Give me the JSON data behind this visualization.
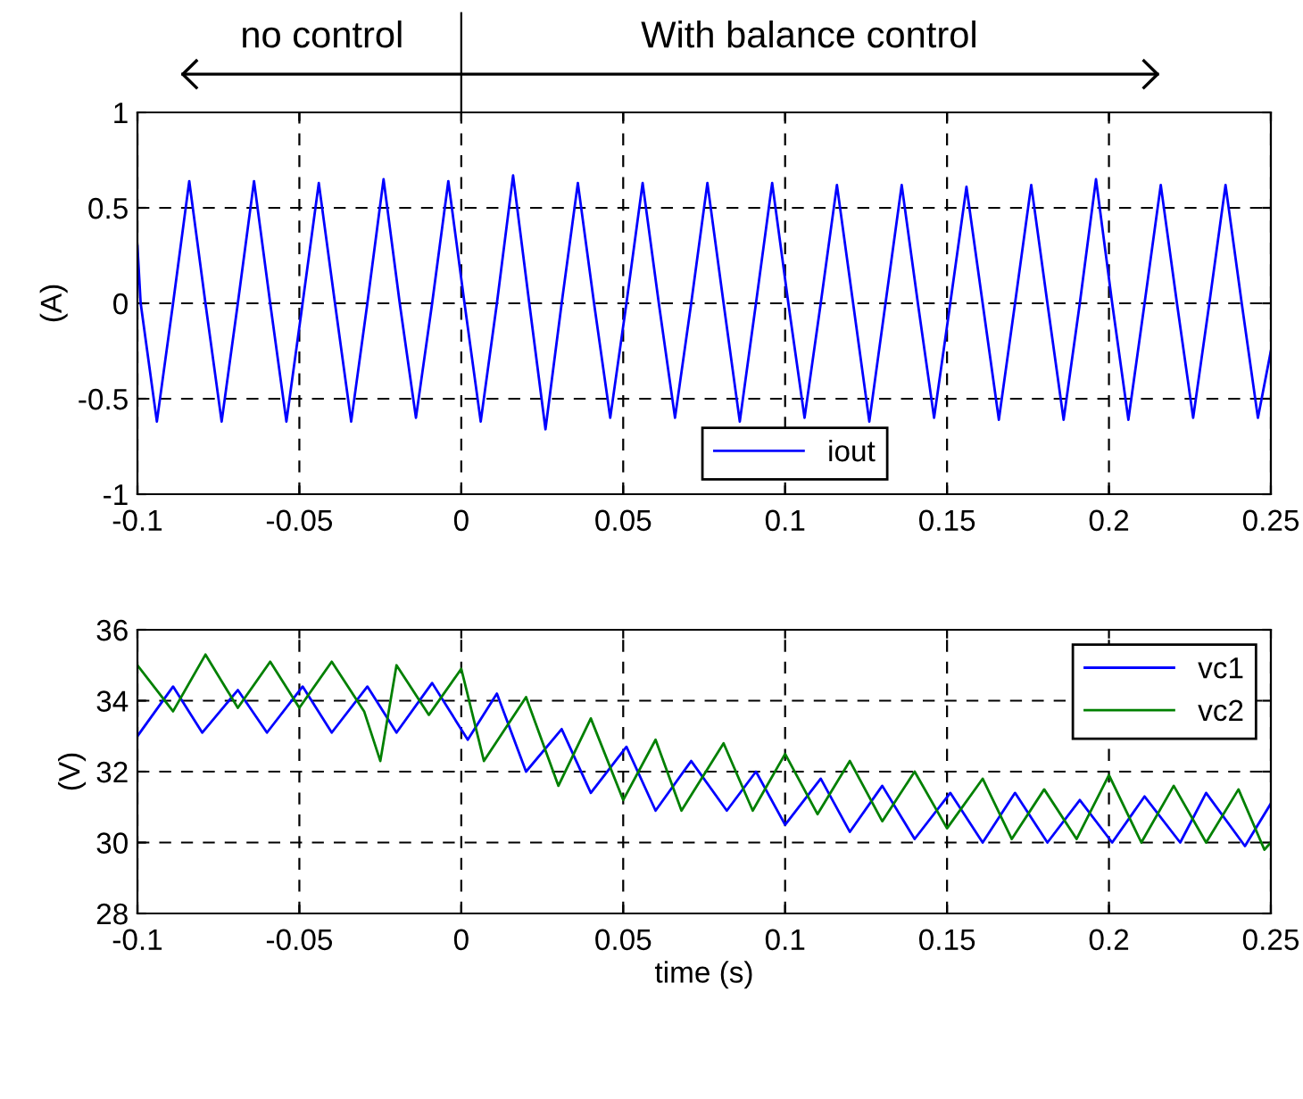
{
  "chart_data": [
    {
      "type": "line",
      "ylabel": "(A)",
      "annotations": [
        "no control",
        "With balance control"
      ],
      "xlim": [
        -0.1,
        0.25
      ],
      "xticks": [
        -0.1,
        -0.05,
        0,
        0.05,
        0.1,
        0.15,
        0.2,
        0.25
      ],
      "ylim": [
        -1,
        1
      ],
      "yticks": [
        -1,
        -0.5,
        0,
        0.5,
        1
      ],
      "grid": true,
      "legend": "bottom",
      "series": [
        {
          "name": "iout",
          "color": "#0000ff",
          "x": [
            -0.1,
            -0.099,
            -0.094,
            -0.089,
            -0.084,
            -0.079,
            -0.074,
            -0.069,
            -0.064,
            -0.059,
            -0.054,
            -0.049,
            -0.044,
            -0.039,
            -0.034,
            -0.029,
            -0.024,
            -0.019,
            -0.014,
            -0.009,
            -0.004,
            0.001,
            0.006,
            0.011,
            0.016,
            0.021,
            0.026,
            0.031,
            0.036,
            0.041,
            0.046,
            0.051,
            0.056,
            0.061,
            0.066,
            0.071,
            0.076,
            0.081,
            0.086,
            0.091,
            0.096,
            0.101,
            0.106,
            0.111,
            0.116,
            0.121,
            0.126,
            0.131,
            0.136,
            0.141,
            0.146,
            0.151,
            0.156,
            0.161,
            0.166,
            0.171,
            0.176,
            0.181,
            0.186,
            0.191,
            0.196,
            0.201,
            0.206,
            0.211,
            0.216,
            0.221,
            0.226,
            0.231,
            0.236,
            0.241,
            0.246,
            0.25
          ],
          "values": [
            0.3,
            0,
            -0.62,
            0,
            0.64,
            0,
            -0.62,
            0,
            0.64,
            0,
            -0.62,
            0,
            0.63,
            0,
            -0.62,
            0,
            0.65,
            0,
            -0.6,
            0,
            0.64,
            0,
            -0.62,
            0,
            0.67,
            0,
            -0.66,
            0,
            0.63,
            0,
            -0.6,
            0,
            0.63,
            0,
            -0.6,
            0,
            0.63,
            0,
            -0.62,
            0,
            0.63,
            0,
            -0.6,
            0,
            0.62,
            0,
            -0.62,
            0,
            0.62,
            0,
            -0.6,
            0,
            0.61,
            0,
            -0.61,
            0,
            0.62,
            0,
            -0.61,
            0,
            0.65,
            0,
            -0.61,
            0,
            0.62,
            0,
            -0.6,
            0,
            0.62,
            0,
            -0.6,
            -0.25
          ]
        }
      ]
    },
    {
      "type": "line",
      "xlabel": "time (s)",
      "ylabel": "(V)",
      "xlim": [
        -0.1,
        0.25
      ],
      "xticks": [
        -0.1,
        -0.05,
        0,
        0.05,
        0.1,
        0.15,
        0.2,
        0.25
      ],
      "ylim": [
        28,
        36
      ],
      "yticks": [
        28,
        30,
        32,
        34,
        36
      ],
      "grid": true,
      "legend": "top right",
      "series": [
        {
          "name": "vc1",
          "color": "#0000ff",
          "x": [
            -0.1,
            -0.089,
            -0.08,
            -0.069,
            -0.06,
            -0.049,
            -0.04,
            -0.029,
            -0.02,
            -0.009,
            0.002,
            0.011,
            0.02,
            0.031,
            0.04,
            0.051,
            0.06,
            0.071,
            0.082,
            0.091,
            0.1,
            0.111,
            0.12,
            0.13,
            0.14,
            0.151,
            0.161,
            0.171,
            0.181,
            0.191,
            0.201,
            0.211,
            0.222,
            0.23,
            0.242,
            0.25
          ],
          "values": [
            33.0,
            34.4,
            33.1,
            34.3,
            33.1,
            34.4,
            33.1,
            34.4,
            33.1,
            34.5,
            32.9,
            34.2,
            32.0,
            33.2,
            31.4,
            32.7,
            30.9,
            32.3,
            30.9,
            32.0,
            30.5,
            31.8,
            30.3,
            31.6,
            30.1,
            31.4,
            30.0,
            31.4,
            30.0,
            31.2,
            30.0,
            31.3,
            30.0,
            31.4,
            29.9,
            31.1
          ]
        },
        {
          "name": "vc2",
          "color": "#008000",
          "x": [
            -0.1,
            -0.089,
            -0.079,
            -0.069,
            -0.059,
            -0.05,
            -0.04,
            -0.03,
            -0.025,
            -0.02,
            -0.01,
            0,
            0.007,
            0.02,
            0.03,
            0.04,
            0.05,
            0.06,
            0.068,
            0.081,
            0.09,
            0.1,
            0.11,
            0.12,
            0.13,
            0.14,
            0.15,
            0.161,
            0.17,
            0.18,
            0.19,
            0.2,
            0.21,
            0.22,
            0.23,
            0.24,
            0.248,
            0.25
          ],
          "values": [
            35.0,
            33.7,
            35.3,
            33.8,
            35.1,
            33.8,
            35.1,
            33.7,
            32.3,
            35.0,
            33.6,
            34.9,
            32.3,
            34.1,
            31.6,
            33.5,
            31.2,
            32.9,
            30.9,
            32.8,
            30.9,
            32.5,
            30.8,
            32.3,
            30.6,
            32.0,
            30.4,
            31.8,
            30.1,
            31.5,
            30.1,
            31.9,
            30.0,
            31.6,
            30.0,
            31.5,
            29.8,
            30.0
          ]
        }
      ]
    }
  ]
}
